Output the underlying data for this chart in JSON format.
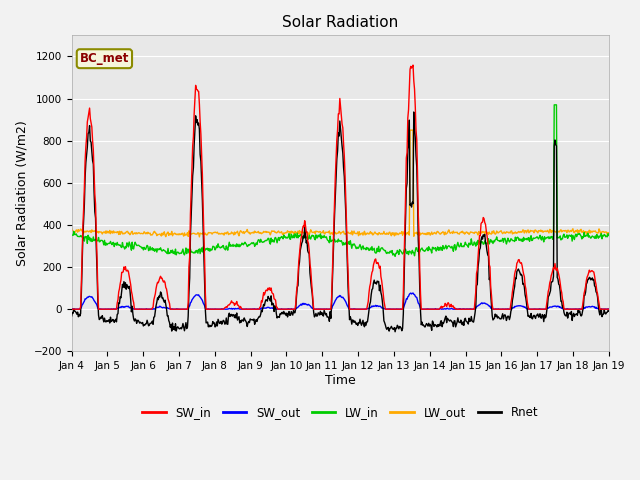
{
  "title": "Solar Radiation",
  "xlabel": "Time",
  "ylabel": "Solar Radiation (W/m2)",
  "ylim": [
    -200,
    1300
  ],
  "xlim": [
    0,
    15
  ],
  "annotation": "BC_met",
  "x_tick_labels": [
    "Jan 4",
    "Jan 5",
    "Jan 6",
    "Jan 7",
    "Jan 8",
    "Jan 9",
    "Jan 10",
    "Jan 11",
    "Jan 12",
    "Jan 13",
    "Jan 14",
    "Jan 15",
    "Jan 16",
    "Jan 17",
    "Jan 18",
    "Jan 19"
  ],
  "legend": [
    "SW_in",
    "SW_out",
    "LW_in",
    "LW_out",
    "Rnet"
  ],
  "colors": {
    "SW_in": "#ff0000",
    "SW_out": "#0000ff",
    "LW_in": "#00cc00",
    "LW_out": "#ffaa00",
    "Rnet": "#000000"
  },
  "fig_bg": "#f2f2f2",
  "axes_bg": "#e8e8e8",
  "title_fontsize": 11,
  "axis_fontsize": 9,
  "tick_fontsize": 7.5,
  "legend_fontsize": 8.5,
  "linewidth": 1.0,
  "annotation_color": "#8b0000",
  "annotation_bg": "#f5f5dc",
  "annotation_edge": "#8b8b00"
}
